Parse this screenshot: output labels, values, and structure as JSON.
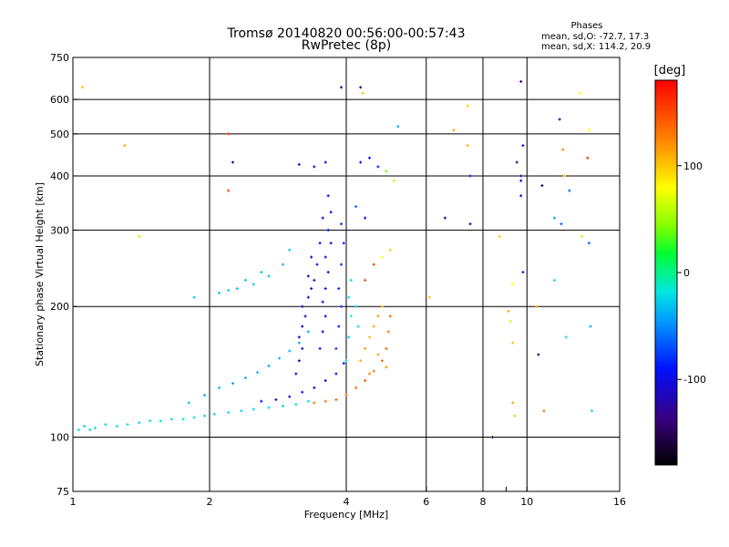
{
  "header": {
    "title_line1": "Tromsø 20140820 00:56:00-00:57:43",
    "title_line2": "RwPretec (8p)",
    "stats_title": "Phases",
    "stats_o": "mean, sd,O: -72.7, 17.3",
    "stats_x": "mean, sd,X: 114.2, 20.9"
  },
  "colorbar": {
    "unit_label": "[deg]",
    "ticks": [
      {
        "value": 100,
        "label": "100"
      },
      {
        "value": 0,
        "label": "0"
      },
      {
        "value": -100,
        "label": "-100"
      }
    ],
    "range": [
      -180,
      180
    ]
  },
  "chart_data": {
    "type": "scatter",
    "xlabel": "Frequency [MHz]",
    "ylabel": "Stationary phase Virtual Height [km]",
    "x_scale": "log",
    "y_scale": "log",
    "xlim": [
      1,
      16
    ],
    "ylim": [
      75,
      750
    ],
    "grid": true,
    "x_ticks": [
      {
        "value": 1,
        "label": "1",
        "grid": false
      },
      {
        "value": 2,
        "label": "2",
        "grid": true
      },
      {
        "value": 4,
        "label": "4",
        "grid": true
      },
      {
        "value": 6,
        "label": "6",
        "grid": true
      },
      {
        "value": 8,
        "label": "8",
        "grid": true
      },
      {
        "value": 9,
        "label": "",
        "grid": false
      },
      {
        "value": 10,
        "label": "10",
        "grid": true
      },
      {
        "value": 16,
        "label": "16",
        "grid": false
      }
    ],
    "y_ticks": [
      {
        "value": 75,
        "label": "75",
        "grid": false
      },
      {
        "value": 100,
        "label": "100",
        "grid": true
      },
      {
        "value": 200,
        "label": "200",
        "grid": true
      },
      {
        "value": 300,
        "label": "300",
        "grid": true
      },
      {
        "value": 400,
        "label": "400",
        "grid": true
      },
      {
        "value": 500,
        "label": "500",
        "grid": true
      },
      {
        "value": 600,
        "label": "600",
        "grid": true
      },
      {
        "value": 750,
        "label": "750",
        "grid": false
      }
    ],
    "points_columns": [
      "frequency_MHz",
      "height_km",
      "phase_deg"
    ],
    "points": [
      [
        1.03,
        104,
        -20
      ],
      [
        1.06,
        106,
        -25
      ],
      [
        1.09,
        104,
        -22
      ],
      [
        1.12,
        105,
        -18
      ],
      [
        1.18,
        107,
        -25
      ],
      [
        1.25,
        106,
        -22
      ],
      [
        1.32,
        107,
        -20
      ],
      [
        1.4,
        108,
        -25
      ],
      [
        1.48,
        109,
        -22
      ],
      [
        1.56,
        109,
        -20
      ],
      [
        1.65,
        110,
        -25
      ],
      [
        1.75,
        110,
        -22
      ],
      [
        1.85,
        111,
        -20
      ],
      [
        1.95,
        112,
        -25
      ],
      [
        2.05,
        113,
        -22
      ],
      [
        2.2,
        114,
        -20
      ],
      [
        2.35,
        115,
        -25
      ],
      [
        2.5,
        116,
        -22
      ],
      [
        2.7,
        117,
        -20
      ],
      [
        2.9,
        118,
        -25
      ],
      [
        3.1,
        119,
        -22
      ],
      [
        3.3,
        121,
        -20
      ],
      [
        1.8,
        120,
        -35
      ],
      [
        1.95,
        125,
        -38
      ],
      [
        2.1,
        130,
        -35
      ],
      [
        2.25,
        133,
        -40
      ],
      [
        2.4,
        137,
        -38
      ],
      [
        2.55,
        141,
        -35
      ],
      [
        2.7,
        146,
        -40
      ],
      [
        2.85,
        152,
        -38
      ],
      [
        3.0,
        158,
        -35
      ],
      [
        3.15,
        165,
        -40
      ],
      [
        3.3,
        175,
        -38
      ],
      [
        2.6,
        121,
        -95
      ],
      [
        2.8,
        122,
        -100
      ],
      [
        3.0,
        124,
        -105
      ],
      [
        3.2,
        127,
        -95
      ],
      [
        3.4,
        130,
        -100
      ],
      [
        3.6,
        135,
        -105
      ],
      [
        3.8,
        140,
        -95
      ],
      [
        3.95,
        148,
        -100
      ],
      [
        3.1,
        140,
        -110
      ],
      [
        3.15,
        150,
        -115
      ],
      [
        3.2,
        160,
        -108
      ],
      [
        3.15,
        170,
        -112
      ],
      [
        3.2,
        180,
        -110
      ],
      [
        3.25,
        190,
        -115
      ],
      [
        3.2,
        200,
        -108
      ],
      [
        3.3,
        210,
        -112
      ],
      [
        3.35,
        220,
        -110
      ],
      [
        3.3,
        235,
        -115
      ],
      [
        3.5,
        160,
        -100
      ],
      [
        3.55,
        175,
        -105
      ],
      [
        3.6,
        190,
        -98
      ],
      [
        3.55,
        205,
        -102
      ],
      [
        3.6,
        220,
        -100
      ],
      [
        3.65,
        240,
        -105
      ],
      [
        3.6,
        260,
        -98
      ],
      [
        3.7,
        280,
        -102
      ],
      [
        3.65,
        300,
        -100
      ],
      [
        3.7,
        330,
        -105
      ],
      [
        3.65,
        360,
        -98
      ],
      [
        3.55,
        320,
        -102
      ],
      [
        3.5,
        280,
        -100
      ],
      [
        3.45,
        250,
        -105
      ],
      [
        3.4,
        230,
        -110
      ],
      [
        3.35,
        260,
        -112
      ],
      [
        3.8,
        160,
        -80
      ],
      [
        3.85,
        180,
        -85
      ],
      [
        3.9,
        200,
        -78
      ],
      [
        3.85,
        220,
        -82
      ],
      [
        3.9,
        250,
        -80
      ],
      [
        3.95,
        280,
        -85
      ],
      [
        3.9,
        310,
        -78
      ],
      [
        4.0,
        150,
        -20
      ],
      [
        4.05,
        170,
        -25
      ],
      [
        4.1,
        190,
        -18
      ],
      [
        4.05,
        210,
        -22
      ],
      [
        4.1,
        230,
        -20
      ],
      [
        4.2,
        200,
        -25
      ],
      [
        4.25,
        180,
        -22
      ],
      [
        2.1,
        215,
        -30
      ],
      [
        2.3,
        220,
        -32
      ],
      [
        2.5,
        225,
        -28
      ],
      [
        2.7,
        235,
        -30
      ],
      [
        2.9,
        250,
        -32
      ],
      [
        3.0,
        270,
        -30
      ],
      [
        2.6,
        240,
        -28
      ],
      [
        2.4,
        230,
        -30
      ],
      [
        1.85,
        210,
        -32
      ],
      [
        2.2,
        218,
        -28
      ],
      [
        3.4,
        120,
        130
      ],
      [
        3.6,
        121,
        135
      ],
      [
        3.8,
        122,
        140
      ],
      [
        4.0,
        125,
        130
      ],
      [
        4.2,
        130,
        135
      ],
      [
        4.4,
        135,
        140
      ],
      [
        4.6,
        142,
        130
      ],
      [
        4.8,
        150,
        135
      ],
      [
        4.9,
        160,
        140
      ],
      [
        4.95,
        175,
        130
      ],
      [
        5.0,
        190,
        135
      ],
      [
        4.3,
        150,
        110
      ],
      [
        4.4,
        160,
        115
      ],
      [
        4.5,
        170,
        105
      ],
      [
        4.6,
        180,
        110
      ],
      [
        4.7,
        190,
        115
      ],
      [
        4.8,
        200,
        105
      ],
      [
        4.5,
        140,
        120
      ],
      [
        4.7,
        155,
        112
      ],
      [
        4.9,
        145,
        118
      ],
      [
        4.4,
        230,
        150
      ],
      [
        4.6,
        250,
        150
      ],
      [
        4.8,
        260,
        80
      ],
      [
        5.0,
        270,
        100
      ],
      [
        4.3,
        430,
        -90
      ],
      [
        4.5,
        440,
        -95
      ],
      [
        4.7,
        420,
        -85
      ],
      [
        4.9,
        410,
        40
      ],
      [
        5.1,
        390,
        60
      ],
      [
        4.2,
        340,
        -60
      ],
      [
        4.4,
        320,
        -100
      ],
      [
        4.3,
        640,
        -120
      ],
      [
        4.35,
        620,
        100
      ],
      [
        3.9,
        640,
        -140
      ],
      [
        3.4,
        420,
        -110
      ],
      [
        3.6,
        430,
        -100
      ],
      [
        3.15,
        425,
        -105
      ],
      [
        2.25,
        430,
        -130
      ],
      [
        2.2,
        500,
        160
      ],
      [
        2.2,
        370,
        150
      ],
      [
        1.05,
        640,
        100
      ],
      [
        1.3,
        470,
        110
      ],
      [
        1.4,
        290,
        90
      ],
      [
        5.2,
        520,
        -40
      ],
      [
        6.1,
        210,
        100
      ],
      [
        6.6,
        320,
        -130
      ],
      [
        6.9,
        510,
        110
      ],
      [
        7.4,
        580,
        100
      ],
      [
        7.4,
        470,
        110
      ],
      [
        7.5,
        400,
        -90
      ],
      [
        7.5,
        310,
        -120
      ],
      [
        8.4,
        100,
        -150
      ],
      [
        8.7,
        290,
        100
      ],
      [
        9.1,
        195,
        110
      ],
      [
        9.2,
        185,
        90
      ],
      [
        9.3,
        165,
        100
      ],
      [
        9.3,
        120,
        110
      ],
      [
        9.4,
        112,
        100
      ],
      [
        9.3,
        225,
        80
      ],
      [
        9.5,
        430,
        -130
      ],
      [
        9.7,
        660,
        -140
      ],
      [
        9.7,
        400,
        -120
      ],
      [
        9.7,
        390,
        -115
      ],
      [
        9.7,
        360,
        -110
      ],
      [
        9.8,
        240,
        -100
      ],
      [
        9.8,
        470,
        -90
      ],
      [
        10.5,
        200,
        110
      ],
      [
        10.6,
        155,
        -140
      ],
      [
        10.8,
        380,
        -150
      ],
      [
        10.9,
        115,
        130
      ],
      [
        11.5,
        230,
        -20
      ],
      [
        11.5,
        320,
        -40
      ],
      [
        11.8,
        540,
        -130
      ],
      [
        11.9,
        310,
        -60
      ],
      [
        12.0,
        460,
        120
      ],
      [
        12.1,
        400,
        100
      ],
      [
        12.2,
        170,
        -20
      ],
      [
        12.4,
        370,
        -60
      ],
      [
        13.1,
        620,
        80
      ],
      [
        13.2,
        290,
        60
      ],
      [
        13.6,
        440,
        160
      ],
      [
        13.7,
        280,
        -60
      ],
      [
        13.8,
        180,
        -40
      ],
      [
        13.9,
        115,
        -20
      ],
      [
        13.7,
        510,
        80
      ]
    ]
  }
}
